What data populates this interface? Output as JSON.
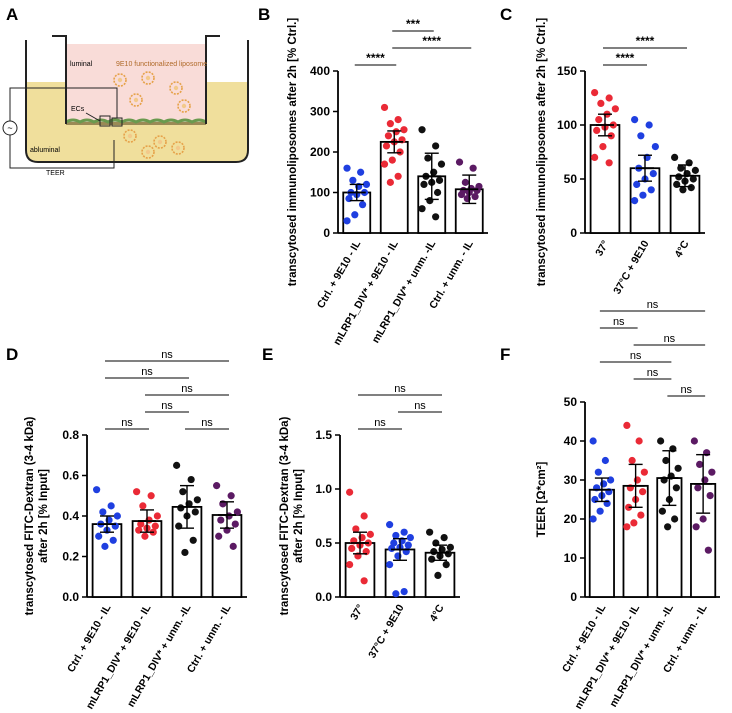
{
  "figure": {
    "panel_letters": [
      "A",
      "B",
      "C",
      "D",
      "E",
      "F"
    ]
  },
  "schematic": {
    "luminal": "luminal",
    "liposome_label": "9E10 functionalized liposome",
    "ecs": "ECs",
    "abluminal": "abluminal",
    "teer": "TEER",
    "meter_symbol": "~",
    "colors": {
      "medium": "#f0df9c",
      "luminal_tint": "#f9dcd8",
      "cells": "#6a9a4e",
      "liposome": "#e6a24a"
    }
  },
  "colors": {
    "blue": "#1f3fe0",
    "red": "#ea2a36",
    "black": "#111111",
    "purple": "#5b1a63"
  },
  "chart_data": [
    {
      "panel": "B",
      "type": "bar",
      "ylabel": "transcytosed immunoliposomes after 2h [% Ctrl.]",
      "ylim": [
        0,
        400
      ],
      "yticks": [
        "0",
        "100",
        "200",
        "300",
        "400"
      ],
      "categories": [
        "Ctrl. + 9E10 - IL",
        "mLRP1_DIV* + 9E10 - IL",
        "mLRP1_DIV* + unm. -IL",
        "Ctrl. + unm. - IL"
      ],
      "means": [
        100,
        225,
        140,
        108
      ],
      "errors": [
        20,
        27,
        57,
        35
      ],
      "point_colors": [
        "blue",
        "red",
        "black",
        "purple"
      ],
      "points": [
        [
          160,
          150,
          130,
          120,
          115,
          100,
          100,
          95,
          85,
          70,
          45,
          30
        ],
        [
          310,
          280,
          270,
          255,
          250,
          240,
          230,
          225,
          215,
          200,
          180,
          170,
          140,
          125
        ],
        [
          255,
          215,
          185,
          170,
          150,
          140,
          130,
          125,
          120,
          100,
          80,
          60,
          40
        ],
        [
          175,
          160,
          125,
          115,
          110,
          105,
          105,
          100,
          95,
          90,
          85
        ]
      ],
      "significance": [
        {
          "from": 0,
          "to": 1,
          "label": "****",
          "level": 0
        },
        {
          "from": 1,
          "to": 3,
          "label": "****",
          "level": 1
        },
        {
          "from": 1,
          "to": 2,
          "label": "***",
          "level": 2
        }
      ]
    },
    {
      "panel": "C",
      "type": "bar",
      "ylabel": "transcytosed immunoliposomes after 2h [% Ctrl.]",
      "ylim": [
        0,
        150
      ],
      "yticks": [
        "0",
        "50",
        "100",
        "150"
      ],
      "categories": [
        "37°",
        "37°C + 9E10",
        "4°C"
      ],
      "means": [
        100,
        60,
        53
      ],
      "errors": [
        10,
        12,
        10
      ],
      "point_colors": [
        "red",
        "blue",
        "black"
      ],
      "points": [
        [
          130,
          125,
          120,
          115,
          110,
          105,
          100,
          98,
          95,
          90,
          80,
          70,
          65
        ],
        [
          105,
          100,
          90,
          80,
          70,
          60,
          55,
          50,
          45,
          40,
          35,
          30
        ],
        [
          70,
          65,
          60,
          58,
          55,
          52,
          50,
          48,
          45,
          42,
          40
        ]
      ],
      "significance": [
        {
          "from": 0,
          "to": 1,
          "label": "****",
          "level": 0
        },
        {
          "from": 0,
          "to": 2,
          "label": "****",
          "level": 1
        }
      ]
    },
    {
      "panel": "D",
      "type": "bar",
      "ylabel": "transcytosed FITC-Dextran (3-4 kDa) after 2h [% Input]",
      "ylim": [
        0,
        0.8
      ],
      "yticks": [
        "0.0",
        "0.2",
        "0.4",
        "0.6",
        "0.8"
      ],
      "categories": [
        "Ctrl. + 9E10 - IL",
        "mLRP1_DIV* + 9E10 - IL",
        "mLRP1_DIV* + unm. -IL",
        "Ctrl. + unm. - IL"
      ],
      "means": [
        0.36,
        0.375,
        0.445,
        0.405
      ],
      "errors": [
        0.04,
        0.055,
        0.105,
        0.065
      ],
      "point_colors": [
        "blue",
        "red",
        "black",
        "purple"
      ],
      "points": [
        [
          0.53,
          0.45,
          0.42,
          0.4,
          0.38,
          0.36,
          0.35,
          0.33,
          0.3,
          0.28,
          0.25
        ],
        [
          0.52,
          0.5,
          0.45,
          0.4,
          0.38,
          0.36,
          0.35,
          0.34,
          0.33,
          0.32,
          0.3
        ],
        [
          0.65,
          0.58,
          0.52,
          0.48,
          0.46,
          0.44,
          0.42,
          0.4,
          0.35,
          0.28,
          0.22
        ],
        [
          0.55,
          0.5,
          0.46,
          0.42,
          0.4,
          0.38,
          0.36,
          0.33,
          0.3,
          0.25
        ]
      ],
      "significance": [
        {
          "from": 0,
          "to": 1,
          "label": "ns",
          "level": 0
        },
        {
          "from": 2,
          "to": 3,
          "label": "ns",
          "level": 0
        },
        {
          "from": 1,
          "to": 2,
          "label": "ns",
          "level": 1
        },
        {
          "from": 1,
          "to": 3,
          "label": "ns",
          "level": 2
        },
        {
          "from": 0,
          "to": 2,
          "label": "ns",
          "level": 3
        },
        {
          "from": 0,
          "to": 3,
          "label": "ns",
          "level": 4
        }
      ]
    },
    {
      "panel": "E",
      "type": "bar",
      "ylabel": "transcytosed FITC-Dextran (3-4 kDa) after 2h [% Input]",
      "ylim": [
        0,
        1.5
      ],
      "yticks": [
        "0.0",
        "0.5",
        "1.0",
        "1.5"
      ],
      "categories": [
        "37°",
        "37°C + 9E10",
        "4°C"
      ],
      "means": [
        0.5,
        0.44,
        0.41
      ],
      "errors": [
        0.1,
        0.1,
        0.07
      ],
      "point_colors": [
        "red",
        "blue",
        "black"
      ],
      "points": [
        [
          0.97,
          0.75,
          0.63,
          0.58,
          0.55,
          0.52,
          0.5,
          0.48,
          0.45,
          0.42,
          0.38,
          0.3,
          0.15
        ],
        [
          0.67,
          0.6,
          0.57,
          0.55,
          0.52,
          0.5,
          0.48,
          0.46,
          0.45,
          0.42,
          0.38,
          0.3,
          0.05,
          0.03
        ],
        [
          0.6,
          0.55,
          0.5,
          0.46,
          0.44,
          0.42,
          0.4,
          0.38,
          0.35,
          0.3,
          0.2
        ]
      ],
      "significance": [
        {
          "from": 0,
          "to": 1,
          "label": "ns",
          "level": 0
        },
        {
          "from": 1,
          "to": 2,
          "label": "ns",
          "level": 1
        },
        {
          "from": 0,
          "to": 2,
          "label": "ns",
          "level": 2
        }
      ]
    },
    {
      "panel": "F",
      "type": "bar",
      "ylabel": "TEER [Ω*cm²]",
      "ylim": [
        0,
        50
      ],
      "yticks": [
        "0",
        "10",
        "20",
        "30",
        "40",
        "50"
      ],
      "categories": [
        "Ctrl. + 9E10 - IL",
        "mLRP1_DIV* + 9E10 - IL",
        "mLRP1_DIV* + unm. -IL",
        "Ctrl. + unm. - IL"
      ],
      "means": [
        27.5,
        28.5,
        30.5,
        29
      ],
      "errors": [
        3,
        5.5,
        7,
        7.5
      ],
      "point_colors": [
        "blue",
        "red",
        "black",
        "purple"
      ],
      "points": [
        [
          40,
          35,
          32,
          30,
          29,
          28,
          27,
          26,
          25,
          24,
          22,
          20
        ],
        [
          44,
          40,
          35,
          32,
          30,
          28,
          27,
          25,
          23,
          21,
          19,
          18
        ],
        [
          40,
          38,
          35,
          33,
          31,
          30,
          28,
          25,
          22,
          20,
          18
        ],
        [
          40,
          37,
          34,
          32,
          30,
          28,
          26,
          20,
          18,
          12
        ]
      ],
      "significance": [
        {
          "from": 2,
          "to": 3,
          "label": "ns",
          "level": 0
        },
        {
          "from": 1,
          "to": 2,
          "label": "ns",
          "level": 1
        },
        {
          "from": 0,
          "to": 2,
          "label": "ns",
          "level": 2
        },
        {
          "from": 1,
          "to": 3,
          "label": "ns",
          "level": 3
        },
        {
          "from": 0,
          "to": 1,
          "label": "ns",
          "level": 4
        },
        {
          "from": 0,
          "to": 3,
          "label": "ns",
          "level": 5
        }
      ]
    }
  ]
}
